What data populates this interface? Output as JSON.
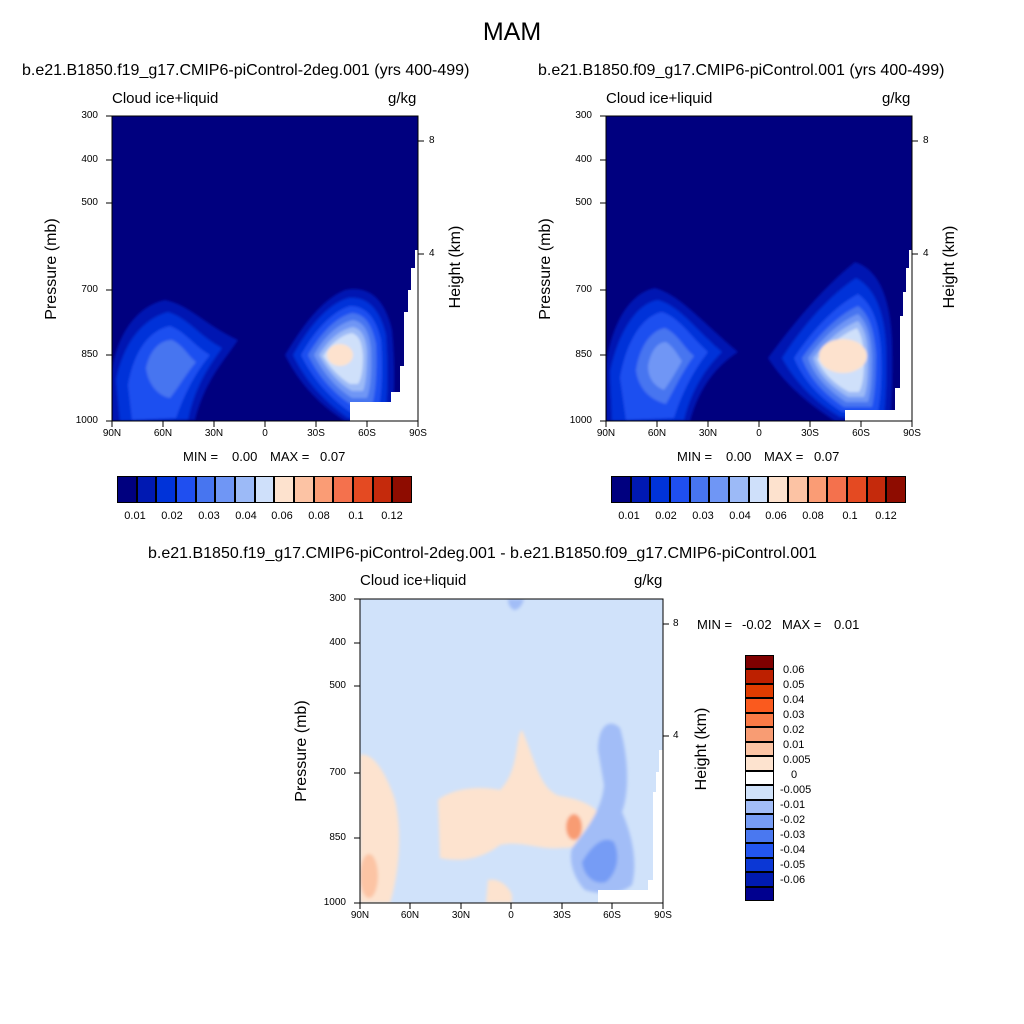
{
  "main_title": "MAM",
  "chart_data": [
    {
      "type": "heatmap",
      "title": "b.e21.B1850.f19_g17.CMIP6-piControl-2deg.001 (yrs 400-499)",
      "variable": "Cloud ice+liquid",
      "units": "g/kg",
      "ylabel": "Pressure (mb)",
      "ylabel_right": "Height (km)",
      "x_ticks": [
        "90N",
        "60N",
        "30N",
        "0",
        "30S",
        "60S",
        "90S"
      ],
      "y_ticks": [
        "300",
        "400",
        "500",
        "700",
        "850",
        "1000"
      ],
      "y_ticks_right": [
        "8",
        "4"
      ],
      "ylim": [
        1000,
        300
      ],
      "min_label": "MIN =",
      "min_value": "0.00",
      "max_label": "MAX =",
      "max_value": "0.07",
      "colorbar_labels": [
        "0.01",
        "0.02",
        "0.03",
        "0.04",
        "0.06",
        "0.08",
        "0.1",
        "0.12"
      ]
    },
    {
      "type": "heatmap",
      "title": "b.e21.B1850.f09_g17.CMIP6-piControl.001 (yrs 400-499)",
      "variable": "Cloud ice+liquid",
      "units": "g/kg",
      "ylabel": "Pressure (mb)",
      "ylabel_right": "Height (km)",
      "x_ticks": [
        "90N",
        "60N",
        "30N",
        "0",
        "30S",
        "60S",
        "90S"
      ],
      "y_ticks": [
        "300",
        "400",
        "500",
        "700",
        "850",
        "1000"
      ],
      "y_ticks_right": [
        "8",
        "4"
      ],
      "ylim": [
        1000,
        300
      ],
      "min_label": "MIN =",
      "min_value": "0.00",
      "max_label": "MAX =",
      "max_value": "0.07",
      "colorbar_labels": [
        "0.01",
        "0.02",
        "0.03",
        "0.04",
        "0.06",
        "0.08",
        "0.1",
        "0.12"
      ]
    },
    {
      "type": "heatmap",
      "title": "b.e21.B1850.f19_g17.CMIP6-piControl-2deg.001 - b.e21.B1850.f09_g17.CMIP6-piControl.001",
      "variable": "Cloud ice+liquid",
      "units": "g/kg",
      "ylabel": "Pressure (mb)",
      "ylabel_right": "Height (km)",
      "x_ticks": [
        "90N",
        "60N",
        "30N",
        "0",
        "30S",
        "60S",
        "90S"
      ],
      "y_ticks": [
        "300",
        "400",
        "500",
        "700",
        "850",
        "1000"
      ],
      "y_ticks_right": [
        "8",
        "4"
      ],
      "ylim": [
        1000,
        300
      ],
      "min_label": "MIN =",
      "min_value": "-0.02",
      "max_label": "MAX =",
      "max_value": "0.01",
      "colorbar_labels": [
        "0.06",
        "0.05",
        "0.04",
        "0.03",
        "0.02",
        "0.01",
        "0.005",
        "0",
        "-0.005",
        "-0.01",
        "-0.02",
        "-0.03",
        "-0.04",
        "-0.05",
        "-0.06"
      ]
    }
  ],
  "colors": {
    "seq": [
      "#00007f",
      "#0019b2",
      "#0033d9",
      "#1f4ff0",
      "#4775f0",
      "#6f96f5",
      "#9cbaf7",
      "#cfe0fa",
      "#fde2ce",
      "#fcc3a4",
      "#fa9c75",
      "#f4714d",
      "#e44a22",
      "#c52a0c",
      "#8e0c00"
    ],
    "diff": [
      "#7f0000",
      "#bd2000",
      "#e03c00",
      "#fa5a1e",
      "#fa7a46",
      "#f89c73",
      "#fcc4a4",
      "#fde3cf",
      "#ffffff",
      "#d0e2fa",
      "#a2bdf7",
      "#769cf5",
      "#4a78f0",
      "#2255f0",
      "#0b37d5",
      "#001ab0",
      "#00008f"
    ]
  }
}
